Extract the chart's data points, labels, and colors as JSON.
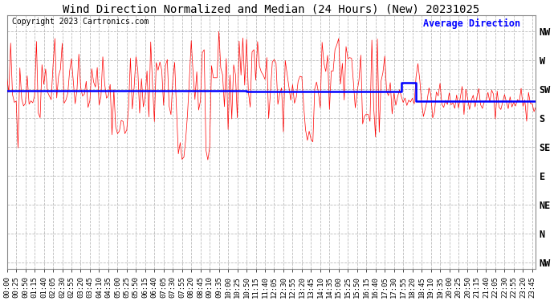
{
  "title": "Wind Direction Normalized and Median (24 Hours) (New) 20231025",
  "copyright_text": "Copyright 2023 Cartronics.com",
  "legend_text": "Average Direction",
  "background_color": "#ffffff",
  "plot_bg_color": "#ffffff",
  "grid_color": "#bbbbbb",
  "y_labels": [
    "NW",
    "W",
    "SW",
    "S",
    "SE",
    "E",
    "NE",
    "N",
    "NW"
  ],
  "y_ticks": [
    360,
    315,
    270,
    225,
    180,
    135,
    90,
    45,
    0
  ],
  "ylim": [
    -10,
    385
  ],
  "red_line_color": "#ff0000",
  "blue_line_color": "#0000ff",
  "title_fontsize": 10,
  "tick_fontsize": 6.5,
  "copyright_fontsize": 7,
  "legend_fontsize": 8.5,
  "seed": 42
}
